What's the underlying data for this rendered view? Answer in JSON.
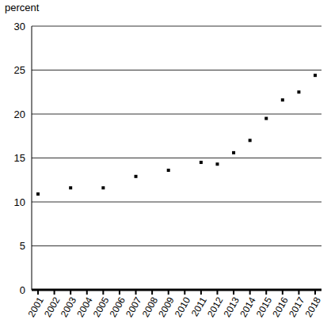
{
  "chart_data": {
    "type": "scatter",
    "y_label": "percent",
    "categories": [
      "2001",
      "2002",
      "2003",
      "2004",
      "2005",
      "2006",
      "2007",
      "2008",
      "2009",
      "2010",
      "2011",
      "2012",
      "2013",
      "2014",
      "2015",
      "2016",
      "2017",
      "2018"
    ],
    "values": [
      10.9,
      null,
      11.6,
      null,
      11.6,
      null,
      12.9,
      null,
      13.6,
      null,
      14.5,
      14.3,
      15.6,
      17.0,
      19.5,
      21.6,
      22.5,
      24.4
    ],
    "color": "#000000",
    "marker": "square",
    "ylim": [
      0,
      30
    ],
    "yticks": [
      0,
      5,
      10,
      15,
      20,
      25,
      30
    ],
    "grid": true
  }
}
